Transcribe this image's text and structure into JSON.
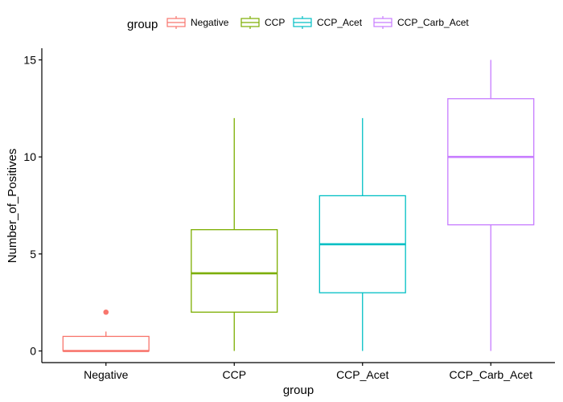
{
  "chart_data": {
    "type": "boxplot",
    "xlabel": "group",
    "ylabel": "Number_of_Positives",
    "ylim": [
      -0.6,
      15.6
    ],
    "yticks": [
      0,
      5,
      10,
      15
    ],
    "categories": [
      "Negative",
      "CCP",
      "CCP_Acet",
      "CCP_Carb_Acet"
    ],
    "legend": {
      "title": "group",
      "position": "top",
      "entries": [
        "Negative",
        "CCP",
        "CCP_Acet",
        "CCP_Carb_Acet"
      ]
    },
    "grid": false,
    "series": [
      {
        "name": "Negative",
        "color": "#F8766D",
        "min": 0,
        "q1": 0,
        "median": 0,
        "q3": 0.75,
        "max": 1,
        "outliers": [
          2
        ]
      },
      {
        "name": "CCP",
        "color": "#7CAE00",
        "min": 0,
        "q1": 2,
        "median": 4,
        "q3": 6.25,
        "max": 12,
        "outliers": []
      },
      {
        "name": "CCP_Acet",
        "color": "#00BFC4",
        "min": 0,
        "q1": 3,
        "median": 5.5,
        "q3": 8,
        "max": 12,
        "outliers": []
      },
      {
        "name": "CCP_Carb_Acet",
        "color": "#C77CFF",
        "min": 0,
        "q1": 6.5,
        "median": 10,
        "q3": 13,
        "max": 15,
        "outliers": []
      }
    ]
  }
}
